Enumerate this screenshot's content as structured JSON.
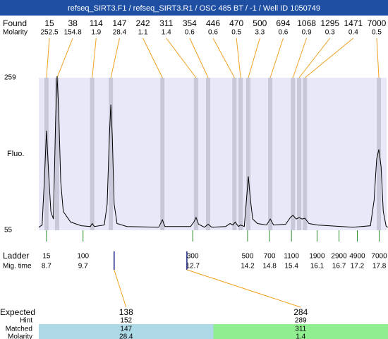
{
  "header": {
    "title": "refseq_SIRT3.F1 / refseq_SIRT3.R1 / OSC 485 BT / -1 / Well ID 1050749"
  },
  "row_labels": {
    "found": "Found",
    "molarity": "Molarity",
    "ladder": "Ladder",
    "mig_time": "Mig. time",
    "expected": "Expected",
    "hint": "Hint",
    "matched": "Matched",
    "matched_molarity": "Molarity",
    "y_axis": "Fluo."
  },
  "yaxis": {
    "ylim": [
      55,
      259
    ],
    "yticks": [
      55,
      259
    ]
  },
  "xaxis": {
    "xlim": [
      8.49,
      18.04
    ]
  },
  "colors": {
    "header": "#1e4fa3",
    "plot_bg": "#e8e8f8",
    "band": "#c8c8d8",
    "connector": "#f0a020",
    "ladder_tick": "#2a8a2a",
    "marker": "#1a237e",
    "trace": "#000000"
  },
  "found": {
    "sizes": [
      15,
      38,
      114,
      147,
      242,
      311,
      354,
      446,
      470,
      500,
      694,
      1068,
      1295,
      1471,
      7000
    ],
    "molarity": [
      252.5,
      154.8,
      1.9,
      28.4,
      1.1,
      1.4,
      0.6,
      0.6,
      0.5,
      3.3,
      0.6,
      0.9,
      0.3,
      0.4,
      0.5
    ],
    "time": [
      8.7,
      8.99,
      9.95,
      10.46,
      11.87,
      12.79,
      13.12,
      13.84,
      14.01,
      14.22,
      14.82,
      15.44,
      15.61,
      15.77,
      17.79
    ]
  },
  "ladder": {
    "sizes": [
      15,
      100,
      300,
      500,
      700,
      1100,
      1900,
      2900,
      4900,
      7000
    ],
    "time": [
      8.7,
      9.7,
      12.7,
      14.2,
      14.8,
      15.4,
      16.1,
      16.7,
      17.2,
      17.8
    ]
  },
  "expected": {
    "sizes": [
      138,
      284
    ],
    "hint": [
      152,
      289
    ],
    "matched": [
      147,
      311
    ],
    "molarity": [
      28.4,
      1.4
    ],
    "time": [
      10.55,
      12.54
    ],
    "colors": [
      "#add8e6",
      "#90ee90"
    ]
  },
  "trace": {
    "time": [
      8.49,
      8.58,
      8.64,
      8.7,
      8.76,
      8.82,
      8.89,
      8.95,
      8.99,
      9.03,
      9.09,
      9.16,
      9.36,
      9.65,
      9.9,
      9.95,
      10.01,
      10.28,
      10.36,
      10.42,
      10.46,
      10.5,
      10.55,
      10.63,
      10.9,
      11.77,
      11.87,
      11.94,
      12.64,
      12.73,
      12.79,
      12.86,
      13.02,
      13.12,
      13.22,
      13.6,
      13.72,
      13.8,
      13.86,
      13.95,
      14.01,
      14.11,
      14.16,
      14.22,
      14.28,
      14.34,
      14.47,
      14.72,
      14.82,
      14.91,
      15.24,
      15.37,
      15.44,
      15.53,
      15.61,
      15.69,
      15.77,
      15.88,
      16.11,
      17.08,
      17.56,
      17.66,
      17.73,
      17.79,
      17.85,
      17.91,
      17.99,
      18.04
    ],
    "fluo": [
      59,
      62,
      120,
      188,
      130,
      80,
      70,
      200,
      261,
      220,
      120,
      80,
      66,
      61,
      60,
      64,
      60,
      62,
      90,
      180,
      223,
      180,
      90,
      64,
      60,
      59,
      69,
      60,
      60,
      66,
      72,
      63,
      59,
      63,
      59,
      60,
      64,
      62,
      66,
      60,
      62,
      60,
      90,
      127,
      95,
      70,
      64,
      62,
      70,
      62,
      63,
      72,
      75,
      70,
      72,
      70,
      71,
      64,
      62,
      59,
      61,
      95,
      150,
      163,
      140,
      80,
      60,
      59
    ]
  }
}
